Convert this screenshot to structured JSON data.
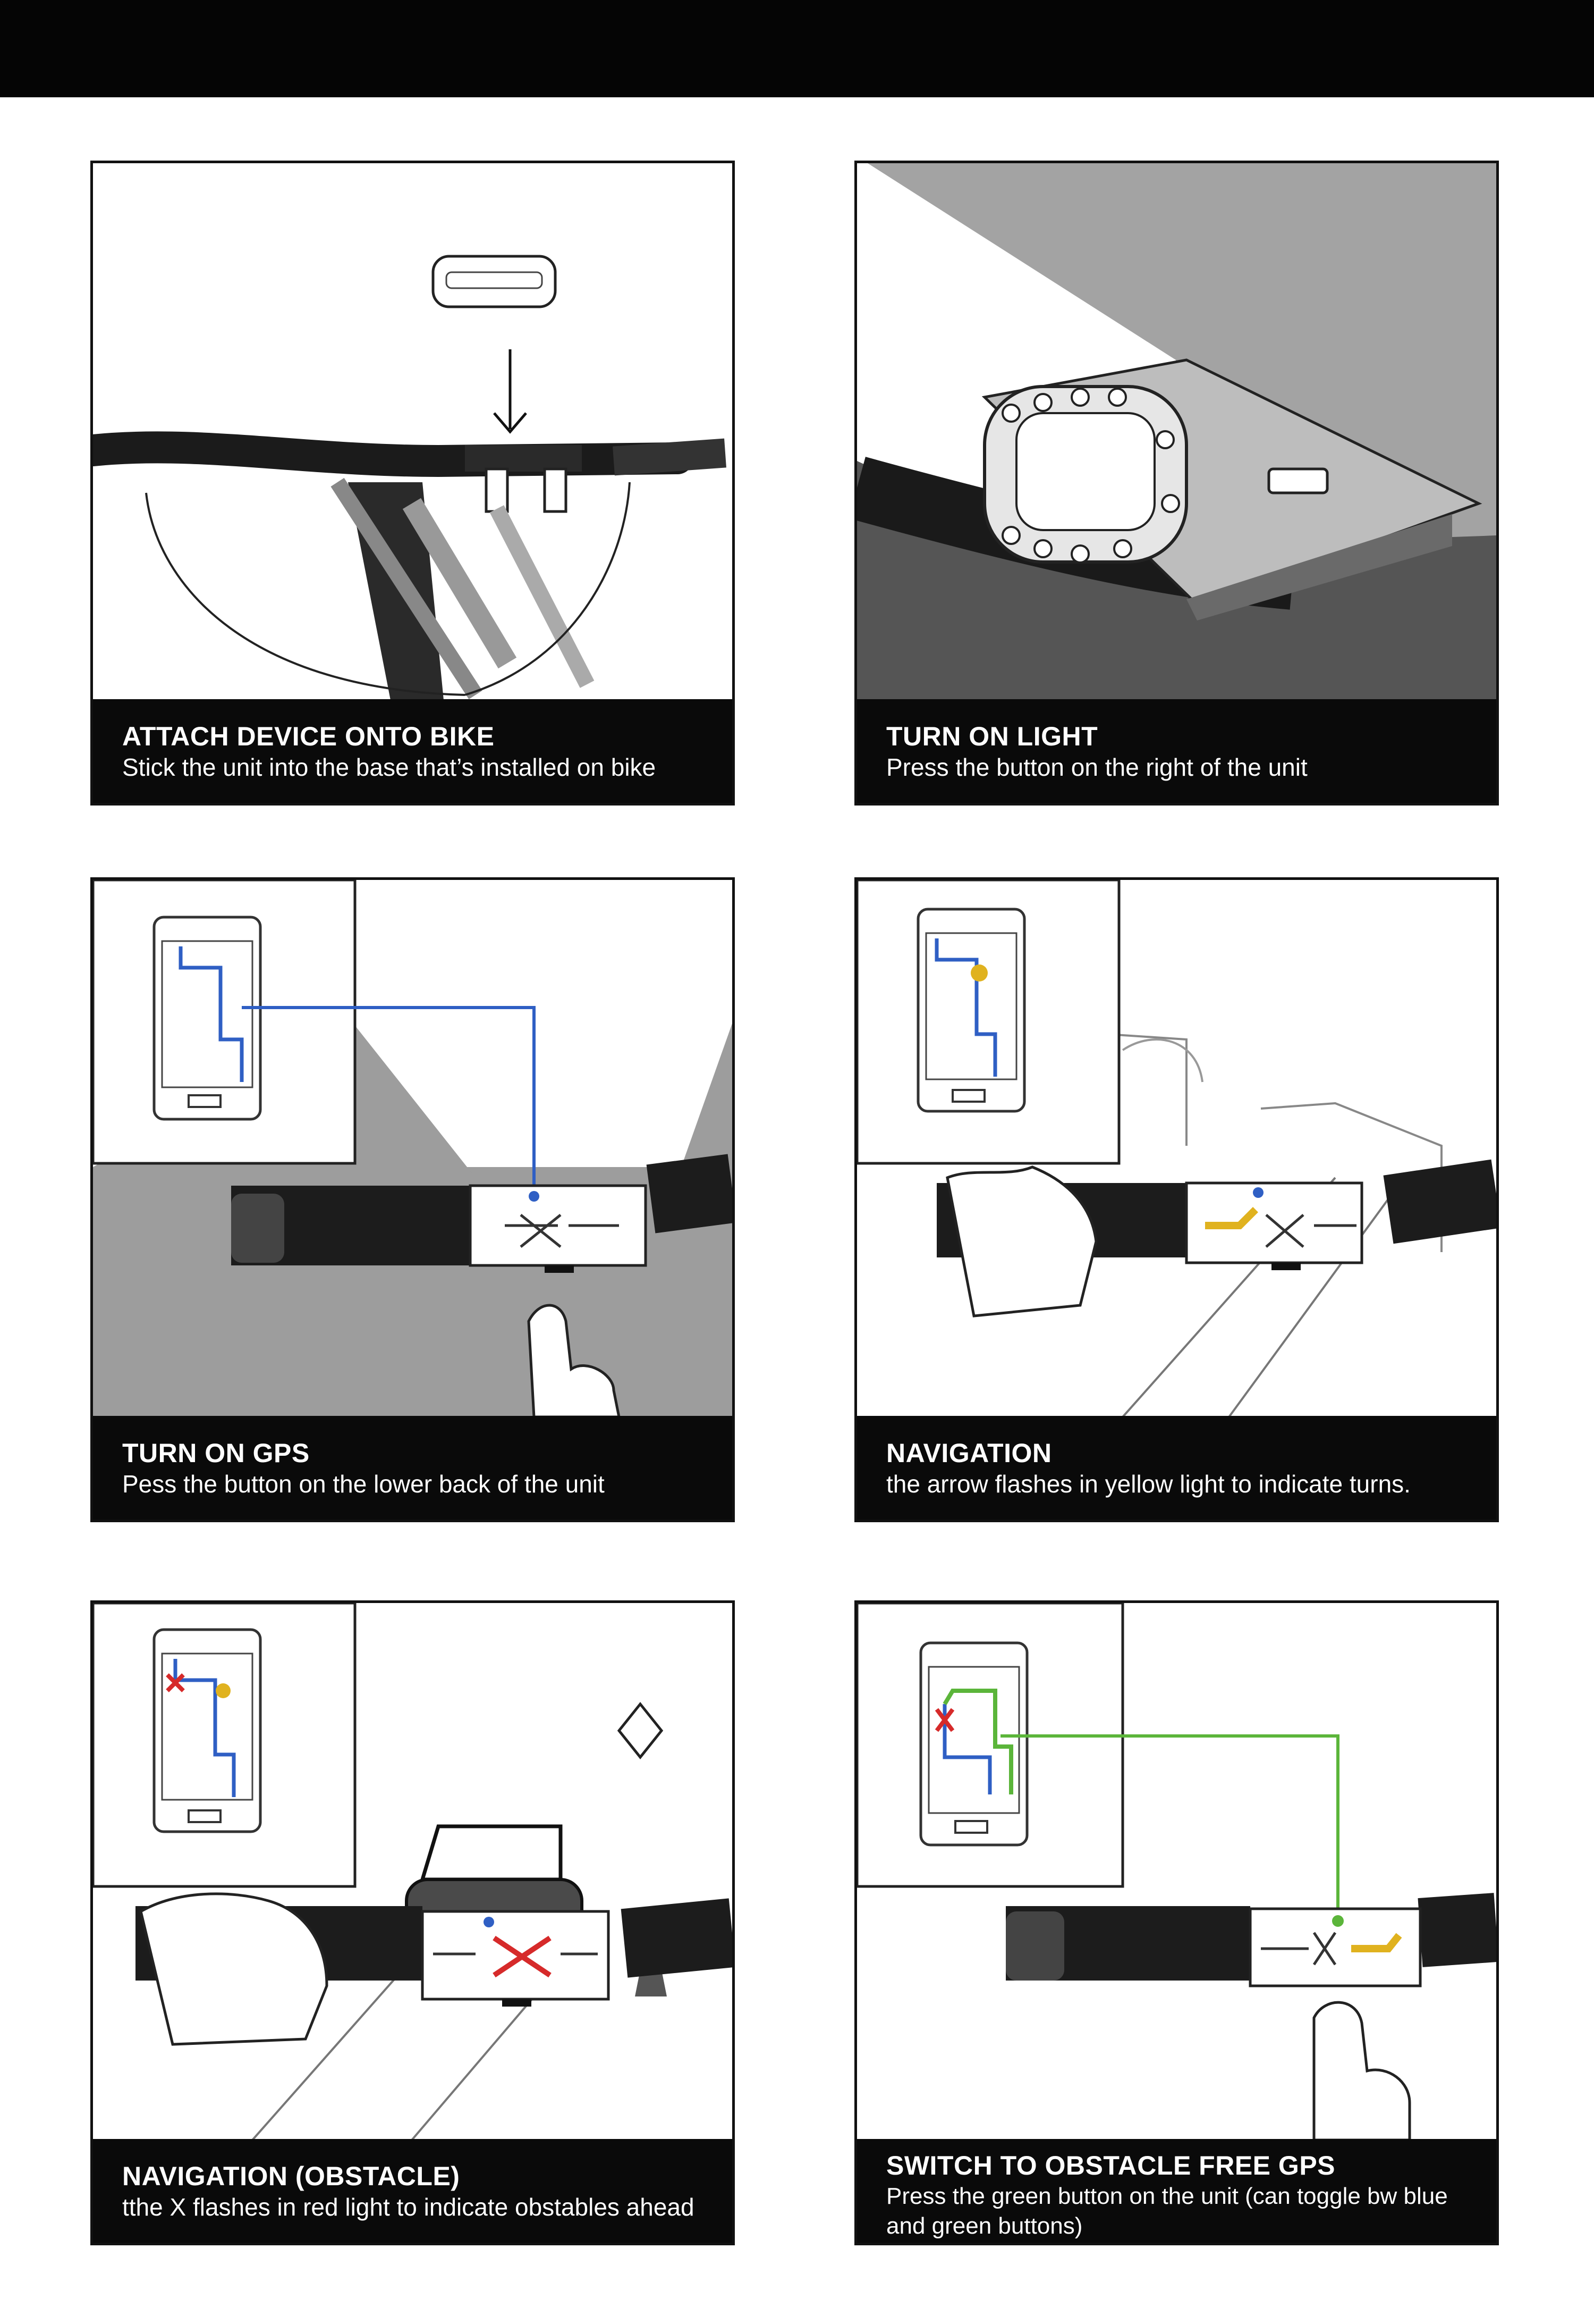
{
  "panels": [
    {
      "title": "ATTACH DEVICE ONTO BIKE",
      "body": "Stick the unit into the base that’s installed on bike"
    },
    {
      "title": "TURN ON LIGHT",
      "body": "Press the button on the right of the unit"
    },
    {
      "title": "TURN ON GPS",
      "body": "Pess the button on the lower back of the unit"
    },
    {
      "title": "NAVIGATION",
      "body": "the arrow flashes in yellow light to indicate turns."
    },
    {
      "title": "NAVIGATION (OBSTACLE)",
      "body": "tthe X flashes in red light to indicate obstables ahead"
    },
    {
      "title": "SWITCH TO OBSTACLE FREE GPS",
      "body": "Press the green button on the unit (can toggle bw blue and green buttons)"
    }
  ],
  "colors": {
    "gps_blue": "#2f5fc4",
    "turn_yellow": "#e0b21f",
    "obstacle_red": "#d62a2a",
    "free_green": "#5bb53a"
  }
}
